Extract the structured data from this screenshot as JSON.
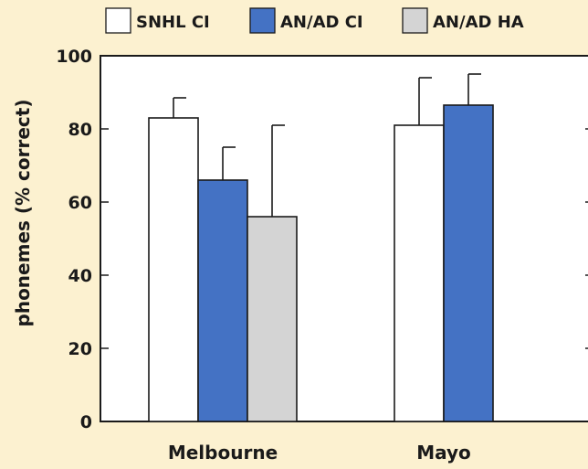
{
  "chart_data": {
    "type": "bar",
    "categories": [
      "Melbourne",
      "Mayo"
    ],
    "series": [
      {
        "name": "SNHL CI",
        "color": "#ffffff",
        "values": [
          83,
          81
        ],
        "error": [
          5.5,
          13
        ]
      },
      {
        "name": "AN/AD CI",
        "color": "#4472c4",
        "values": [
          66,
          86.5
        ],
        "error": [
          9,
          8.5
        ]
      },
      {
        "name": "AN/AD HA",
        "color": "#d4d4d4",
        "values": [
          56,
          null
        ],
        "error": [
          25,
          null
        ]
      }
    ],
    "title": "",
    "xlabel": "",
    "ylabel": "phonemes (% correct)",
    "ylim": [
      0,
      100
    ],
    "yticks": [
      0,
      20,
      40,
      60,
      80,
      100
    ],
    "legend_position": "top",
    "grid": false
  }
}
